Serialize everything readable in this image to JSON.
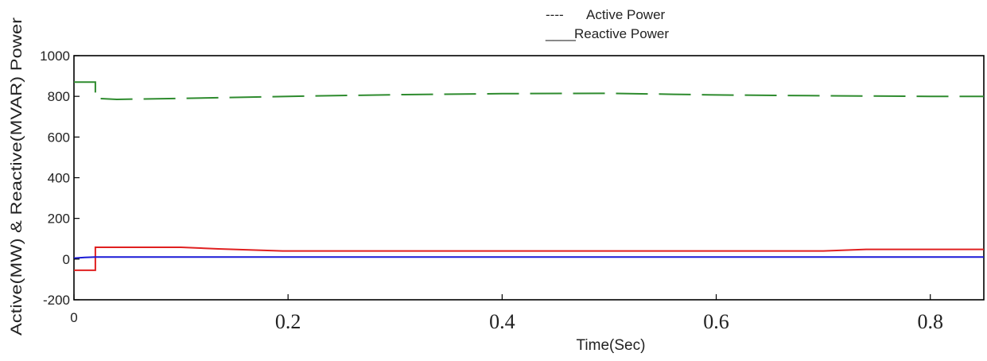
{
  "chart_data": {
    "type": "line",
    "title": "",
    "xlabel": "Time(Sec)",
    "ylabel": "Active(MW) & Reactive(MVAR) Power",
    "xlim": [
      0,
      0.85
    ],
    "ylim": [
      -200,
      1000
    ],
    "x_ticks": [
      {
        "value": 0,
        "label": "0"
      },
      {
        "value": 0.2,
        "label": "0.2"
      },
      {
        "value": 0.4,
        "label": "0.4"
      },
      {
        "value": 0.6,
        "label": "0.6"
      },
      {
        "value": 0.8,
        "label": "0.8"
      }
    ],
    "y_ticks": [
      {
        "value": 1000,
        "label": "1000"
      },
      {
        "value": 800,
        "label": "800"
      },
      {
        "value": 600,
        "label": "600"
      },
      {
        "value": 400,
        "label": "400"
      },
      {
        "value": 200,
        "label": "200"
      },
      {
        "value": 0,
        "label": "0"
      },
      {
        "value": -200,
        "label": "-200"
      }
    ],
    "grid": false,
    "legend_position": "top",
    "legend": [
      {
        "marker": "----",
        "label": "Active Power",
        "style": "dashed"
      },
      {
        "marker": "____",
        "label": "Reactive Power",
        "style": "solid"
      }
    ],
    "series": [
      {
        "color": "#2e8b2e",
        "style": "dashed",
        "x": [
          0,
          0.02,
          0.02,
          0.04,
          0.1,
          0.2,
          0.3,
          0.4,
          0.5,
          0.56,
          0.6,
          0.7,
          0.8,
          0.85
        ],
        "y": [
          870,
          870,
          790,
          785,
          790,
          800,
          808,
          813,
          815,
          810,
          807,
          803,
          800,
          800
        ]
      },
      {
        "color": "#e02020",
        "style": "solid",
        "x": [
          0,
          0.02,
          0.02,
          0.1,
          0.135,
          0.195,
          0.3,
          0.4,
          0.5,
          0.6,
          0.7,
          0.74,
          0.85
        ],
        "y": [
          -55,
          -55,
          58,
          58,
          50,
          40,
          40,
          40,
          40,
          40,
          40,
          48,
          48
        ]
      },
      {
        "color": "#1a1ad6",
        "style": "solid",
        "x": [
          0,
          0.01,
          0.02,
          0.85
        ],
        "y": [
          5,
          8,
          10,
          10
        ]
      }
    ]
  }
}
